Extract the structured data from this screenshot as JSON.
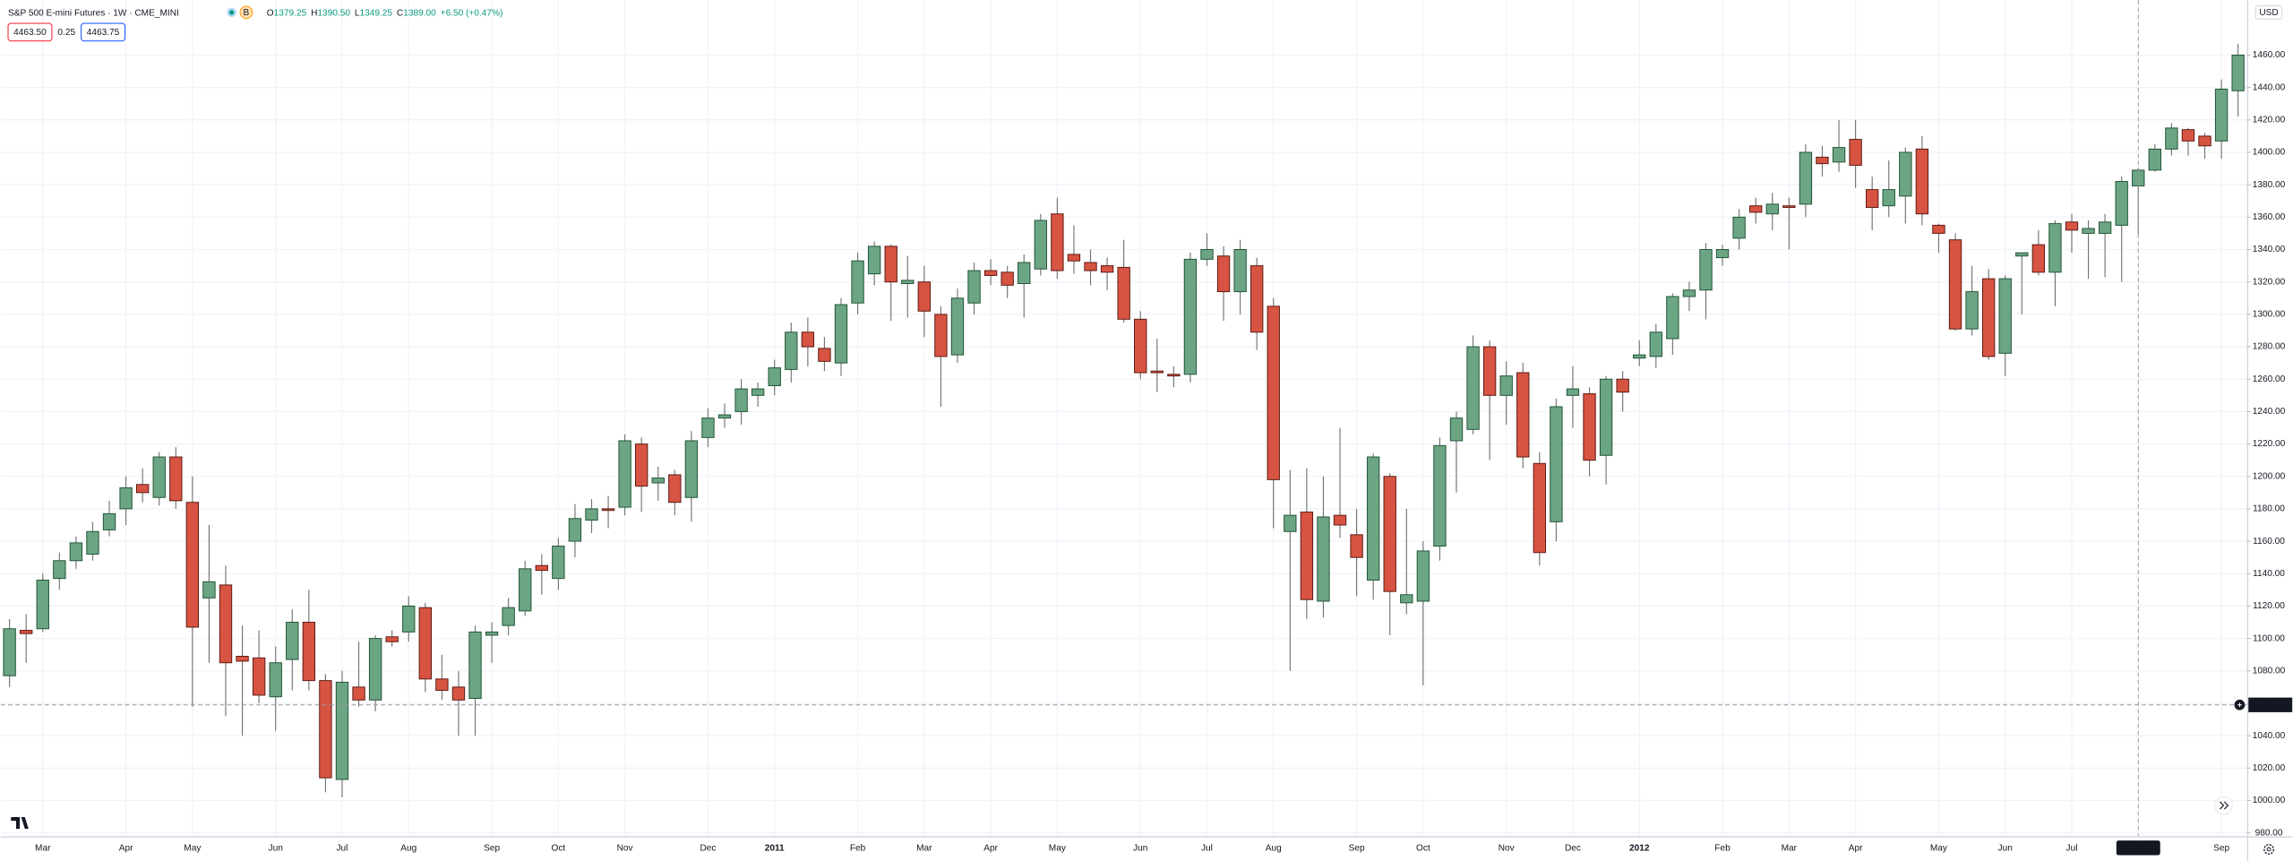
{
  "header": {
    "symbol": "S&P 500 E-mini Futures · 1W · CME_MINI",
    "badge": "B",
    "ohlc": [
      {
        "label": "O",
        "value": "1379.25"
      },
      {
        "label": "H",
        "value": "1390.50"
      },
      {
        "label": "L",
        "value": "1349.25"
      },
      {
        "label": "C",
        "value": "1389.00"
      }
    ],
    "change": "+6.50 (+0.47%)",
    "sell": "4463.50",
    "spread": "0.25",
    "buy": "4463.75",
    "currency": "USD"
  },
  "chart_data": {
    "type": "candlestick",
    "categories": [
      null,
      null,
      "Mar",
      null,
      null,
      null,
      null,
      "Apr",
      null,
      null,
      null,
      "May",
      null,
      null,
      null,
      null,
      "Jun",
      null,
      null,
      null,
      "Jul",
      null,
      null,
      null,
      "Aug",
      null,
      null,
      null,
      null,
      "Sep",
      null,
      null,
      null,
      "Oct",
      null,
      null,
      null,
      "Nov",
      null,
      null,
      null,
      null,
      "Dec",
      null,
      null,
      null,
      "2011",
      null,
      null,
      null,
      null,
      "Feb",
      null,
      null,
      null,
      "Mar",
      null,
      null,
      null,
      "Apr",
      null,
      null,
      null,
      "May",
      null,
      null,
      null,
      null,
      "Jun",
      null,
      null,
      null,
      "Jul",
      null,
      null,
      null,
      "Aug",
      null,
      null,
      null,
      null,
      "Sep",
      null,
      null,
      null,
      "Oct",
      null,
      null,
      null,
      null,
      "Nov",
      null,
      null,
      null,
      "Dec",
      null,
      null,
      null,
      "2012",
      null,
      null,
      null,
      null,
      "Feb",
      null,
      null,
      null,
      "Mar",
      null,
      null,
      null,
      "Apr",
      null,
      null,
      null,
      null,
      "May",
      null,
      null,
      null,
      "Jun",
      null,
      null,
      null,
      "Jul",
      null,
      null,
      null,
      "30 Jul '12",
      null,
      null,
      null,
      null,
      "Sep",
      null
    ],
    "open": [
      1077,
      1105,
      1106,
      1137,
      1148,
      1152,
      1167,
      1180,
      1195,
      1187,
      1212,
      1184,
      1125,
      1133,
      1089,
      1088,
      1064,
      1087,
      1110,
      1074,
      1013,
      1070,
      1062,
      1101,
      1104,
      1119,
      1075,
      1070,
      1063,
      1102,
      1108,
      1117,
      1145,
      1137,
      1160,
      1173,
      1180,
      1181,
      1220,
      1196,
      1201,
      1187,
      1224,
      1236,
      1240,
      1250,
      1256,
      1266,
      1289,
      1279,
      1270,
      1307,
      1325,
      1342,
      1319,
      1320,
      1300,
      1275,
      1307,
      1327,
      1326,
      1319,
      1328,
      1362,
      1337,
      1332,
      1330,
      1329,
      1297,
      1265,
      1263,
      1263,
      1334,
      1336,
      1314,
      1330,
      1305,
      1166,
      1178,
      1123,
      1176,
      1164,
      1136,
      1200,
      1122,
      1123,
      1157,
      1222,
      1229,
      1280,
      1250,
      1264,
      1208,
      1172,
      1250,
      1251,
      1213,
      1260,
      1273,
      1274,
      1285,
      1311,
      1315,
      1335,
      1347,
      1367,
      1362,
      1367,
      1368,
      1397,
      1394,
      1408,
      1377,
      1367,
      1373,
      1402,
      1355,
      1346,
      1291,
      1322,
      1276,
      1336,
      1343,
      1326,
      1357,
      1350,
      1350,
      1355,
      1379.25,
      1389,
      1402,
      1414,
      1410,
      1407,
      1438
    ],
    "high": [
      1112,
      1115,
      1140,
      1153,
      1163,
      1172,
      1185,
      1200,
      1205,
      1215,
      1218,
      1200,
      1170,
      1145,
      1108,
      1105,
      1095,
      1118,
      1130,
      1078,
      1080,
      1098,
      1102,
      1105,
      1126,
      1122,
      1090,
      1080,
      1108,
      1110,
      1125,
      1148,
      1152,
      1162,
      1183,
      1186,
      1188,
      1226,
      1224,
      1206,
      1204,
      1228,
      1242,
      1245,
      1260,
      1258,
      1272,
      1295,
      1298,
      1286,
      1310,
      1338,
      1345,
      1343,
      1336,
      1330,
      1305,
      1316,
      1332,
      1334,
      1330,
      1337,
      1362,
      1372,
      1355,
      1340,
      1335,
      1346,
      1302,
      1285,
      1268,
      1338,
      1350,
      1342,
      1346,
      1335,
      1310,
      1204,
      1205,
      1200,
      1230,
      1180,
      1214,
      1202,
      1180,
      1160,
      1224,
      1240,
      1287,
      1284,
      1271,
      1270,
      1215,
      1248,
      1268,
      1255,
      1262,
      1265,
      1284,
      1294,
      1313,
      1320,
      1344,
      1343,
      1365,
      1372,
      1375,
      1372,
      1405,
      1404,
      1420,
      1420,
      1385,
      1395,
      1403,
      1410,
      1356,
      1350,
      1330,
      1328,
      1324,
      1338,
      1352,
      1358,
      1362,
      1358,
      1362,
      1385,
      1390.5,
      1405,
      1418,
      1415,
      1412,
      1445,
      1467
    ],
    "low": [
      1070,
      1085,
      1104,
      1130,
      1143,
      1148,
      1163,
      1170,
      1184,
      1182,
      1180,
      1058,
      1085,
      1052,
      1040,
      1060,
      1043,
      1068,
      1068,
      1005,
      1002,
      1058,
      1055,
      1095,
      1098,
      1067,
      1062,
      1040,
      1040,
      1085,
      1102,
      1114,
      1127,
      1130,
      1150,
      1165,
      1168,
      1176,
      1178,
      1185,
      1176,
      1172,
      1218,
      1230,
      1232,
      1243,
      1250,
      1258,
      1268,
      1265,
      1262,
      1300,
      1318,
      1296,
      1298,
      1286,
      1243,
      1270,
      1300,
      1318,
      1310,
      1298,
      1324,
      1322,
      1325,
      1318,
      1315,
      1295,
      1260,
      1252,
      1255,
      1258,
      1330,
      1296,
      1300,
      1278,
      1168,
      1080,
      1112,
      1113,
      1162,
      1126,
      1124,
      1102,
      1115,
      1071,
      1148,
      1190,
      1226,
      1210,
      1232,
      1205,
      1145,
      1160,
      1230,
      1200,
      1195,
      1240,
      1268,
      1267,
      1275,
      1302,
      1297,
      1330,
      1340,
      1356,
      1352,
      1340,
      1360,
      1385,
      1388,
      1378,
      1352,
      1360,
      1356,
      1355,
      1338,
      1290,
      1287,
      1272,
      1262,
      1300,
      1324,
      1305,
      1338,
      1322,
      1323,
      1320,
      1349.25,
      1388,
      1398,
      1398,
      1396,
      1396,
      1422
    ],
    "close": [
      1106,
      1103,
      1136,
      1148,
      1159,
      1166,
      1177,
      1193,
      1190,
      1212,
      1185,
      1107,
      1135,
      1085,
      1086,
      1065,
      1085,
      1110,
      1074,
      1014,
      1073,
      1062,
      1100,
      1098,
      1120,
      1075,
      1068,
      1062,
      1104,
      1104,
      1119,
      1143,
      1142,
      1157,
      1174,
      1180,
      1179,
      1222,
      1194,
      1199,
      1184,
      1222,
      1236,
      1238,
      1254,
      1254,
      1267,
      1289,
      1280,
      1271,
      1306,
      1333,
      1342,
      1320,
      1321,
      1302,
      1274,
      1310,
      1327,
      1324,
      1318,
      1332,
      1358,
      1327,
      1333,
      1327,
      1326,
      1297,
      1264,
      1264,
      1262,
      1334,
      1340,
      1314,
      1340,
      1289,
      1198,
      1176,
      1124,
      1175,
      1170,
      1150,
      1212,
      1129,
      1127,
      1154,
      1219,
      1236,
      1280,
      1250,
      1262,
      1212,
      1153,
      1243,
      1254,
      1210,
      1260,
      1252,
      1275,
      1289,
      1311,
      1315,
      1340,
      1340,
      1360,
      1363,
      1368,
      1366,
      1400,
      1393,
      1403,
      1392,
      1366,
      1377,
      1400,
      1362,
      1350,
      1291,
      1314,
      1274,
      1322,
      1338,
      1326,
      1356,
      1352,
      1353,
      1357,
      1382,
      1389,
      1402,
      1415,
      1407,
      1404,
      1439,
      1460
    ],
    "up_color": "#6ba583",
    "down_color": "#d75442",
    "ylim": [
      978,
      1494
    ],
    "yticks": [
      {
        "value": 980,
        "label": "980.00"
      },
      {
        "value": 1000,
        "label": "1000.00"
      },
      {
        "value": 1020,
        "label": "1020.00"
      },
      {
        "value": 1040,
        "label": "1040.00"
      },
      {
        "value": 1060,
        "label": "1060.00"
      },
      {
        "value": 1080,
        "label": "1080.00"
      },
      {
        "value": 1100,
        "label": "1100.00"
      },
      {
        "value": 1120,
        "label": "1120.00"
      },
      {
        "value": 1140,
        "label": "1140.00"
      },
      {
        "value": 1160,
        "label": "1160.00"
      },
      {
        "value": 1180,
        "label": "1180.00"
      },
      {
        "value": 1200,
        "label": "1200.00"
      },
      {
        "value": 1220,
        "label": "1220.00"
      },
      {
        "value": 1240,
        "label": "1240.00"
      },
      {
        "value": 1260,
        "label": "1260.00"
      },
      {
        "value": 1280,
        "label": "1280.00"
      },
      {
        "value": 1300,
        "label": "1300.00"
      },
      {
        "value": 1320,
        "label": "1320.00"
      },
      {
        "value": 1340,
        "label": "1340.00"
      },
      {
        "value": 1360,
        "label": "1360.00"
      },
      {
        "value": 1380,
        "label": "1380.00"
      },
      {
        "value": 1400,
        "label": "1400.00"
      },
      {
        "value": 1420,
        "label": "1420.00"
      },
      {
        "value": 1440,
        "label": "1440.00"
      },
      {
        "value": 1460,
        "label": "1460.00"
      }
    ],
    "grid": true,
    "crosshair": {
      "x": "30 Jul '12",
      "price": {
        "value": 1059,
        "label": "1059.00"
      }
    }
  }
}
